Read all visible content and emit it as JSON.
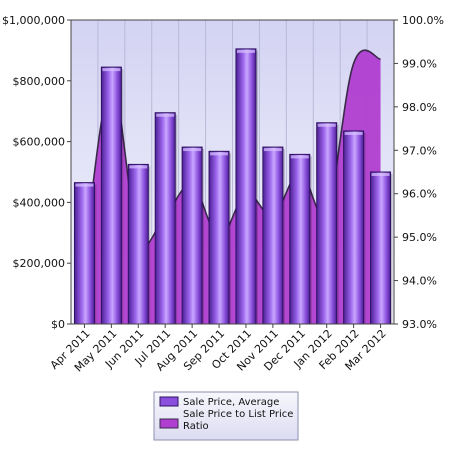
{
  "chart_data": {
    "type": "bar",
    "categories": [
      "Apr 2011",
      "May 2011",
      "Jun 2011",
      "Jul 2011",
      "Aug 2011",
      "Sep 2011",
      "Oct 2011",
      "Nov 2011",
      "Dec 2011",
      "Jan 2012",
      "Feb 2012",
      "Mar 2012"
    ],
    "series": [
      {
        "name": "Sale Price, Average",
        "type": "bar",
        "axis": "left",
        "values": [
          465000,
          845000,
          525000,
          695000,
          582000,
          568000,
          905000,
          582000,
          558000,
          662000,
          635000,
          500000
        ]
      },
      {
        "name": "Sale Price to List Price Ratio",
        "type": "area",
        "axis": "right",
        "values": [
          94.6,
          98.5,
          95.0,
          95.5,
          96.2,
          95.0,
          96.0,
          95.5,
          96.5,
          95.6,
          99.0,
          99.1
        ]
      }
    ],
    "y_left": {
      "ylim": [
        0,
        1000000
      ],
      "ticks": [
        0,
        200000,
        400000,
        600000,
        800000,
        1000000
      ],
      "tick_labels": [
        "$0",
        "$200,000",
        "$400,000",
        "$600,000",
        "$800,000",
        "$1,000,000"
      ]
    },
    "y_right": {
      "ylim": [
        93.0,
        100.0
      ],
      "ticks": [
        93,
        94,
        95,
        96,
        97,
        98,
        99,
        100
      ],
      "tick_labels": [
        "93.0%",
        "94.0%",
        "95.0%",
        "96.0%",
        "97.0%",
        "98.0%",
        "99.0%",
        "100.0%"
      ]
    },
    "grid": "vertical",
    "legend_position": "bottom-center",
    "colors": {
      "bar_fill": "#8a4fdc",
      "bar_dark": "#4d1f95",
      "bar_light": "#c9a6ff",
      "area_fill": "#b03ed0",
      "area_stroke": "#3a2a4a",
      "plot_bg_top": "#d6d6f4",
      "plot_bg_bottom": "#f4f4fc"
    }
  }
}
